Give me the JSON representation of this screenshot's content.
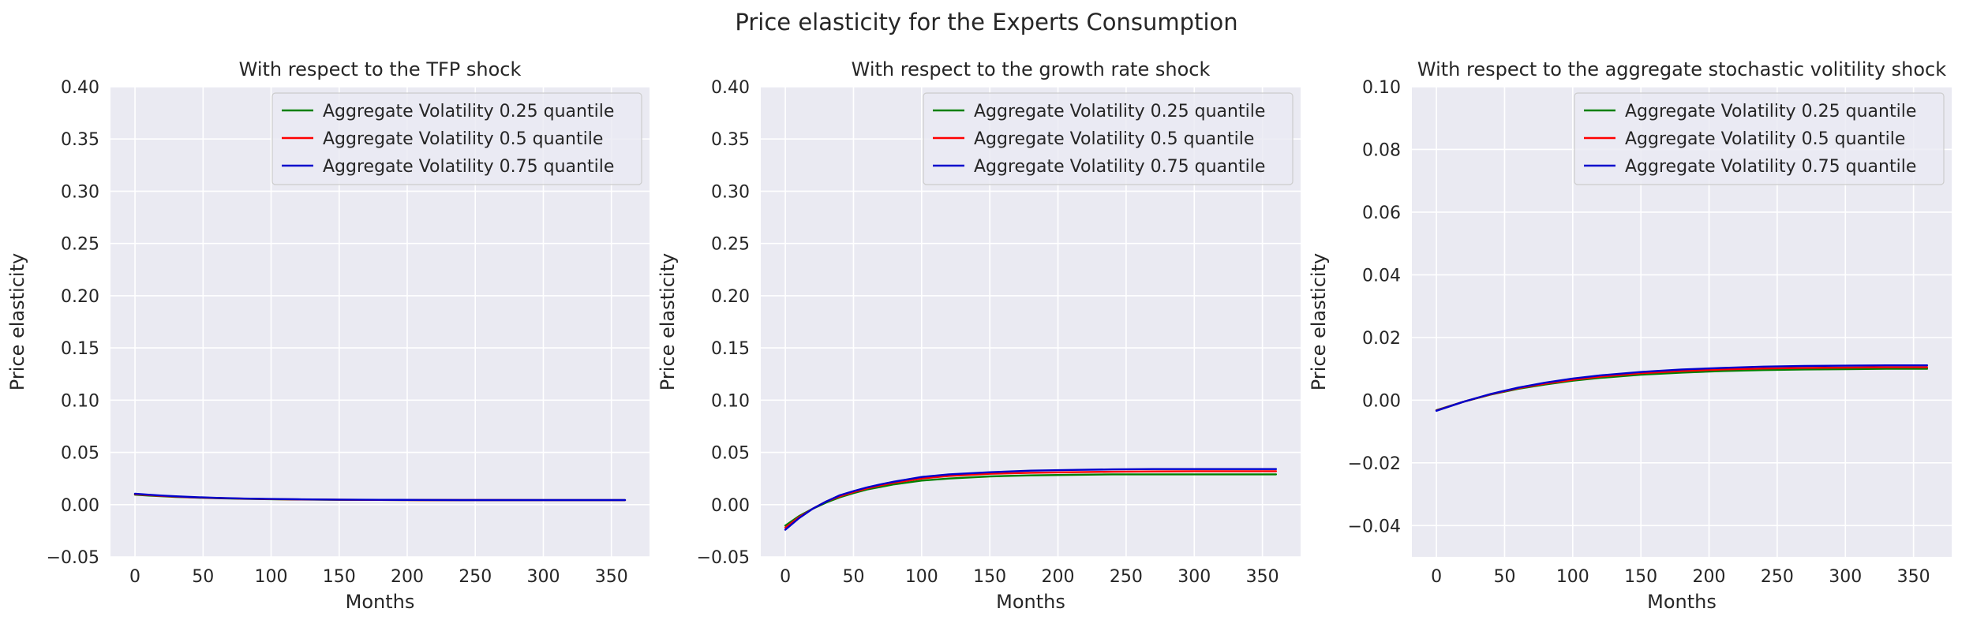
{
  "figure_title": "Price elasticity for the Experts Consumption",
  "chart_data": [
    {
      "type": "line",
      "title": "With respect to the TFP shock",
      "xlabel": "Months",
      "ylabel": "Price elasticity",
      "xlim": [
        -18,
        378
      ],
      "ylim": [
        -0.05,
        0.4
      ],
      "xticks": [
        0,
        50,
        100,
        150,
        200,
        250,
        300,
        350
      ],
      "xtick_labels": [
        "0",
        "50",
        "100",
        "150",
        "200",
        "250",
        "300",
        "350"
      ],
      "yticks": [
        -0.05,
        0.0,
        0.05,
        0.1,
        0.15,
        0.2,
        0.25,
        0.3,
        0.35,
        0.4
      ],
      "ytick_labels": [
        "−0.05",
        "0.00",
        "0.05",
        "0.10",
        "0.15",
        "0.20",
        "0.25",
        "0.30",
        "0.35",
        "0.40"
      ],
      "grid": true,
      "legend_position": "top-right",
      "x": [
        0,
        10,
        20,
        30,
        40,
        50,
        60,
        80,
        100,
        120,
        150,
        180,
        210,
        240,
        270,
        300,
        330,
        360
      ],
      "series": [
        {
          "name": "Aggregate Volatility 0.25 quantile",
          "color": "#008000",
          "values": [
            0.0095,
            0.0087,
            0.008,
            0.0074,
            0.0069,
            0.0065,
            0.0061,
            0.0056,
            0.0052,
            0.0049,
            0.0046,
            0.0045,
            0.0044,
            0.0043,
            0.0043,
            0.0043,
            0.0043,
            0.0043
          ]
        },
        {
          "name": "Aggregate Volatility 0.5 quantile",
          "color": "#ff0000",
          "values": [
            0.01,
            0.0091,
            0.0083,
            0.0077,
            0.0071,
            0.0067,
            0.0063,
            0.0057,
            0.0053,
            0.005,
            0.0047,
            0.0045,
            0.0044,
            0.0044,
            0.0044,
            0.0043,
            0.0043,
            0.0043
          ]
        },
        {
          "name": "Aggregate Volatility 0.75 quantile",
          "color": "#0000cc",
          "values": [
            0.0105,
            0.0095,
            0.0087,
            0.008,
            0.0074,
            0.0069,
            0.0065,
            0.0058,
            0.0054,
            0.0051,
            0.0048,
            0.0046,
            0.0045,
            0.0044,
            0.0044,
            0.0044,
            0.0044,
            0.0044
          ]
        }
      ]
    },
    {
      "type": "line",
      "title": "With respect to the growth rate shock",
      "xlabel": "Months",
      "ylabel": "Price elasticity",
      "xlim": [
        -18,
        378
      ],
      "ylim": [
        -0.05,
        0.4
      ],
      "xticks": [
        0,
        50,
        100,
        150,
        200,
        250,
        300,
        350
      ],
      "xtick_labels": [
        "0",
        "50",
        "100",
        "150",
        "200",
        "250",
        "300",
        "350"
      ],
      "yticks": [
        -0.05,
        0.0,
        0.05,
        0.1,
        0.15,
        0.2,
        0.25,
        0.3,
        0.35,
        0.4
      ],
      "ytick_labels": [
        "−0.05",
        "0.00",
        "0.05",
        "0.10",
        "0.15",
        "0.20",
        "0.25",
        "0.30",
        "0.35",
        "0.40"
      ],
      "grid": true,
      "legend_position": "top-right",
      "x": [
        0,
        10,
        20,
        30,
        40,
        50,
        60,
        70,
        80,
        100,
        120,
        150,
        180,
        210,
        240,
        270,
        300,
        330,
        360
      ],
      "series": [
        {
          "name": "Aggregate Volatility 0.25 quantile",
          "color": "#008000",
          "values": [
            -0.02,
            -0.011,
            -0.004,
            0.002,
            0.007,
            0.011,
            0.0145,
            0.017,
            0.0195,
            0.023,
            0.025,
            0.027,
            0.028,
            0.0285,
            0.029,
            0.029,
            0.029,
            0.029,
            0.029
          ]
        },
        {
          "name": "Aggregate Volatility 0.5 quantile",
          "color": "#ff0000",
          "values": [
            -0.022,
            -0.012,
            -0.004,
            0.003,
            0.008,
            0.012,
            0.0155,
            0.0185,
            0.021,
            0.025,
            0.0275,
            0.0295,
            0.0305,
            0.031,
            0.0315,
            0.0318,
            0.032,
            0.032,
            0.032
          ]
        },
        {
          "name": "Aggregate Volatility 0.75 quantile",
          "color": "#0000cc",
          "values": [
            -0.024,
            -0.013,
            -0.004,
            0.003,
            0.009,
            0.013,
            0.0165,
            0.0195,
            0.022,
            0.0265,
            0.029,
            0.031,
            0.0325,
            0.0332,
            0.0337,
            0.034,
            0.034,
            0.034,
            0.034
          ]
        }
      ]
    },
    {
      "type": "line",
      "title": "With respect to the aggregate stochastic volitility shock",
      "xlabel": "Months",
      "ylabel": "Price elasticity",
      "xlim": [
        -18,
        378
      ],
      "ylim": [
        -0.05,
        0.1
      ],
      "xticks": [
        0,
        50,
        100,
        150,
        200,
        250,
        300,
        350
      ],
      "xtick_labels": [
        "0",
        "50",
        "100",
        "150",
        "200",
        "250",
        "300",
        "350"
      ],
      "yticks": [
        -0.04,
        -0.02,
        0.0,
        0.02,
        0.04,
        0.06,
        0.08,
        0.1
      ],
      "ytick_labels": [
        "−0.04",
        "−0.02",
        "0.00",
        "0.02",
        "0.04",
        "0.06",
        "0.08",
        "0.10"
      ],
      "grid": true,
      "legend_position": "top-right",
      "x": [
        0,
        20,
        40,
        60,
        80,
        100,
        120,
        150,
        180,
        210,
        240,
        270,
        300,
        330,
        360
      ],
      "series": [
        {
          "name": "Aggregate Volatility 0.25 quantile",
          "color": "#008000",
          "values": [
            -0.0032,
            -0.0005,
            0.0018,
            0.0036,
            0.005,
            0.0062,
            0.0071,
            0.0081,
            0.0088,
            0.0093,
            0.0096,
            0.0098,
            0.0099,
            0.01,
            0.01
          ]
        },
        {
          "name": "Aggregate Volatility 0.5 quantile",
          "color": "#ff0000",
          "values": [
            -0.0033,
            -0.0005,
            0.0019,
            0.0038,
            0.0053,
            0.0065,
            0.0075,
            0.0086,
            0.0093,
            0.0098,
            0.0101,
            0.0103,
            0.0104,
            0.0105,
            0.0105
          ]
        },
        {
          "name": "Aggregate Volatility 0.75 quantile",
          "color": "#0000cc",
          "values": [
            -0.0034,
            -0.0005,
            0.002,
            0.004,
            0.0056,
            0.0069,
            0.0079,
            0.009,
            0.0098,
            0.0103,
            0.0107,
            0.0109,
            0.011,
            0.0111,
            0.0111
          ]
        }
      ]
    }
  ]
}
